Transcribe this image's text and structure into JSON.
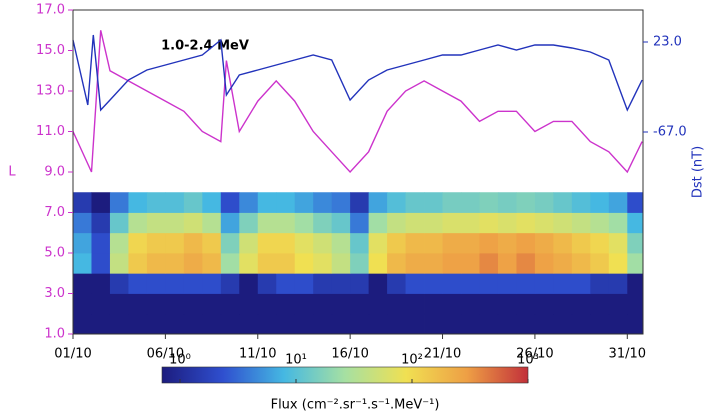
{
  "chart_data": {
    "type": "heatmap",
    "annotation": "1.0-2.4 MeV",
    "ylabel": "L",
    "y2label": "Dst (nT)",
    "colorbar_label": "Flux (cm⁻².sr⁻¹.s⁻¹.MeV⁻¹)",
    "y_color": "#cc33cc",
    "y2_color": "#2233bb",
    "xlim": [
      1,
      31.85
    ],
    "xticks": [
      {
        "value": 1,
        "label": "01/10"
      },
      {
        "value": 6,
        "label": "06/10"
      },
      {
        "value": 11,
        "label": "11/10"
      },
      {
        "value": 16,
        "label": "16/10"
      },
      {
        "value": 21,
        "label": "21/10"
      },
      {
        "value": 26,
        "label": "26/10"
      },
      {
        "value": 31,
        "label": "31/10"
      }
    ],
    "ylim": [
      1,
      17
    ],
    "yticks": [
      {
        "value": 1,
        "label": "1.0"
      },
      {
        "value": 3,
        "label": "3.0"
      },
      {
        "value": 5,
        "label": "5.0"
      },
      {
        "value": 7,
        "label": "7.0"
      },
      {
        "value": 9,
        "label": "9.0"
      },
      {
        "value": 11,
        "label": "11.0"
      },
      {
        "value": 13,
        "label": "13.0"
      },
      {
        "value": 15,
        "label": "15.0"
      },
      {
        "value": 17,
        "label": "17.0"
      }
    ],
    "y2lim": [
      -269,
      55
    ],
    "y2ticks": [
      {
        "value": -67,
        "label": "-67.0"
      },
      {
        "value": 23,
        "label": "23.0"
      }
    ],
    "color_scale": "log",
    "clim": [
      1,
      1000
    ],
    "cticks": [
      {
        "value": 1,
        "label": "10⁰"
      },
      {
        "value": 10,
        "label": "10¹"
      },
      {
        "value": 100,
        "label": "10²"
      },
      {
        "value": 1000,
        "label": "10³"
      }
    ],
    "colormap": [
      "#1c1c7e",
      "#2f4fcf",
      "#45b8e2",
      "#a6e0a2",
      "#f0e052",
      "#ee9f45",
      "#c2303a"
    ],
    "x": [
      1,
      2,
      3,
      4,
      5,
      6,
      7,
      8,
      9,
      10,
      11,
      12,
      13,
      14,
      15,
      16,
      17,
      18,
      19,
      20,
      21,
      22,
      23,
      24,
      25,
      26,
      27,
      28,
      29,
      30,
      31
    ],
    "y_bins": [
      1,
      2,
      3,
      4,
      5,
      6,
      7,
      8
    ],
    "z": [
      [
        1,
        1,
        1,
        1,
        1,
        1,
        1,
        1,
        1,
        1,
        1,
        1,
        1,
        1,
        1,
        1,
        1,
        1,
        1,
        1,
        1,
        1,
        1,
        1,
        1,
        1,
        1,
        1,
        1,
        1,
        1
      ],
      [
        1,
        1,
        1,
        1,
        1,
        1,
        1,
        1,
        1,
        1,
        1,
        1,
        1,
        1,
        1,
        1,
        1,
        1,
        1,
        1,
        1,
        1,
        1,
        1,
        1,
        1,
        1,
        1,
        1,
        1,
        1
      ],
      [
        1,
        1,
        2,
        3,
        3,
        3,
        3,
        3,
        2,
        1,
        2,
        3,
        3,
        2,
        2,
        2,
        1,
        2,
        3,
        3,
        3,
        3,
        3,
        3,
        3,
        3,
        3,
        3,
        2,
        2,
        1
      ],
      [
        10,
        3,
        50,
        150,
        200,
        200,
        250,
        200,
        30,
        80,
        150,
        150,
        100,
        80,
        50,
        20,
        100,
        200,
        250,
        250,
        300,
        300,
        400,
        300,
        400,
        300,
        250,
        200,
        150,
        100,
        30
      ],
      [
        8,
        3,
        40,
        120,
        150,
        150,
        200,
        150,
        20,
        60,
        120,
        120,
        80,
        60,
        40,
        15,
        80,
        150,
        200,
        200,
        250,
        250,
        300,
        250,
        300,
        250,
        200,
        150,
        120,
        80,
        20
      ],
      [
        5,
        2,
        15,
        40,
        50,
        50,
        60,
        40,
        8,
        20,
        40,
        40,
        30,
        20,
        15,
        5,
        30,
        50,
        60,
        60,
        70,
        70,
        80,
        70,
        80,
        70,
        60,
        50,
        40,
        30,
        10
      ],
      [
        2,
        1,
        5,
        10,
        12,
        12,
        15,
        10,
        3,
        6,
        10,
        10,
        8,
        6,
        5,
        2,
        8,
        12,
        15,
        15,
        18,
        18,
        20,
        18,
        20,
        18,
        15,
        12,
        10,
        8,
        3
      ]
    ],
    "series": [
      {
        "color": "#cc33cc",
        "axis": "y",
        "x": [
          1,
          2,
          2.5,
          3,
          4,
          5,
          6,
          7,
          8,
          9,
          9.3,
          10,
          11,
          12,
          13,
          14,
          15,
          16,
          17,
          18,
          19,
          20,
          21,
          22,
          23,
          24,
          25,
          26,
          27,
          28,
          29,
          30,
          31,
          31.8
        ],
        "values": [
          11,
          9,
          16,
          14,
          13.5,
          13,
          12.5,
          12,
          11,
          10.5,
          14.5,
          11,
          12.5,
          13.5,
          12.5,
          11,
          10,
          9,
          10,
          12,
          13,
          13.5,
          13,
          12.5,
          11.5,
          12,
          12,
          11,
          11.5,
          11.5,
          10.5,
          10,
          9,
          10.5
        ]
      },
      {
        "color": "#2233bb",
        "axis": "y2",
        "x": [
          1,
          1.8,
          2.1,
          2.5,
          3,
          4,
          5,
          6,
          7,
          8,
          9,
          9.3,
          10,
          11,
          12,
          13,
          14,
          15,
          16,
          17,
          18,
          19,
          20,
          21,
          22,
          23,
          24,
          25,
          26,
          27,
          28,
          29,
          30,
          31,
          31.8
        ],
        "values": [
          25,
          -40,
          30,
          -45,
          -35,
          -15,
          -5,
          0,
          5,
          10,
          25,
          -30,
          -10,
          -5,
          0,
          5,
          10,
          5,
          -35,
          -15,
          -5,
          0,
          5,
          10,
          10,
          15,
          20,
          15,
          20,
          20,
          17,
          13,
          5,
          -45,
          -15
        ]
      }
    ]
  }
}
